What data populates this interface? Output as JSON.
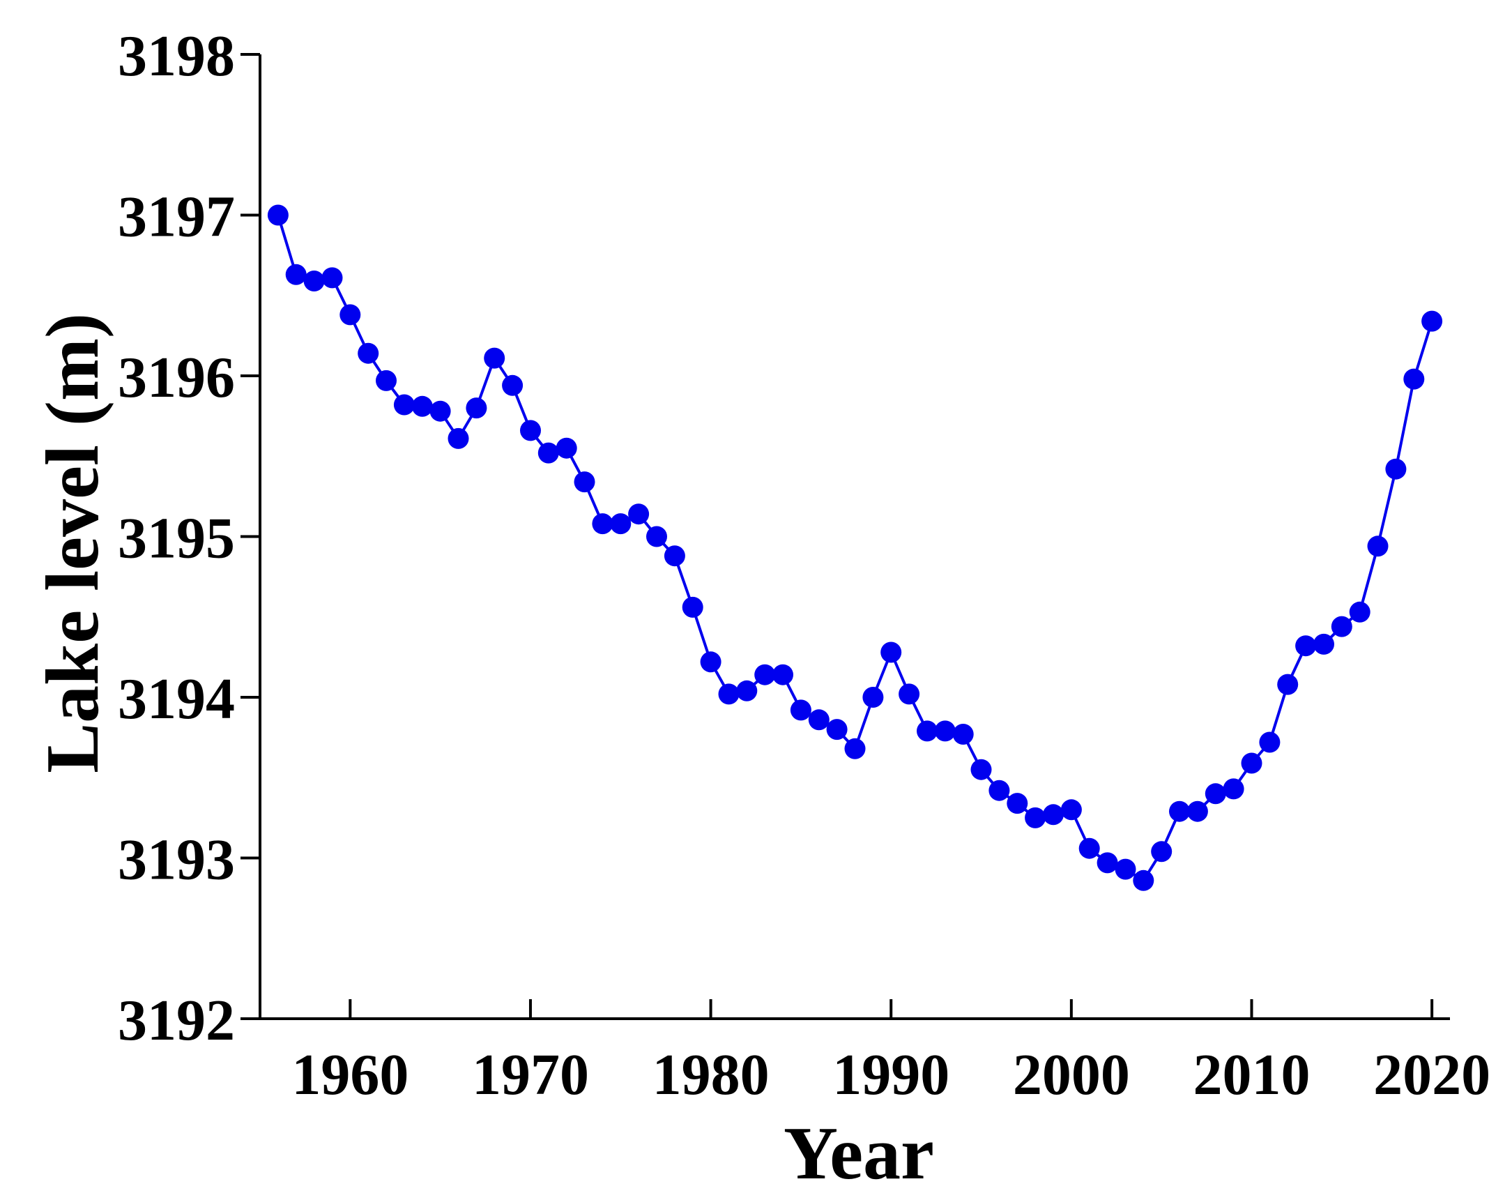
{
  "chart_data": {
    "type": "line",
    "title": "",
    "xlabel": "Year",
    "ylabel": "Lake level (m)",
    "xlim": [
      1955,
      2021
    ],
    "ylim": [
      3192,
      3198
    ],
    "xticks": [
      1960,
      1970,
      1980,
      1990,
      2000,
      2010,
      2020
    ],
    "xtick_labels": [
      "1960",
      "1970",
      "1980",
      "1990",
      "2000",
      "2010",
      "2020"
    ],
    "yticks": [
      3192,
      3193,
      3194,
      3195,
      3196,
      3197,
      3198
    ],
    "ytick_labels": [
      "3192",
      "3193",
      "3194",
      "3195",
      "3196",
      "3197",
      "3198"
    ],
    "grid": false,
    "legend": "none",
    "series": [
      {
        "color": "#0000ee",
        "marker": "circle",
        "x": [
          1956,
          1957,
          1958,
          1959,
          1960,
          1961,
          1962,
          1963,
          1964,
          1965,
          1966,
          1967,
          1968,
          1969,
          1970,
          1971,
          1972,
          1973,
          1974,
          1975,
          1976,
          1977,
          1978,
          1979,
          1980,
          1981,
          1982,
          1983,
          1984,
          1985,
          1986,
          1987,
          1988,
          1989,
          1990,
          1991,
          1992,
          1993,
          1994,
          1995,
          1996,
          1997,
          1998,
          1999,
          2000,
          2001,
          2002,
          2003,
          2004,
          2005,
          2006,
          2007,
          2008,
          2009,
          2010,
          2011,
          2012,
          2013,
          2014,
          2015,
          2016,
          2017,
          2018,
          2019,
          2020
        ],
        "y": [
          3197.0,
          3196.63,
          3196.59,
          3196.61,
          3196.38,
          3196.14,
          3195.97,
          3195.82,
          3195.81,
          3195.78,
          3195.61,
          3195.8,
          3196.11,
          3195.94,
          3195.66,
          3195.52,
          3195.55,
          3195.34,
          3195.08,
          3195.08,
          3195.14,
          3195.0,
          3194.88,
          3194.56,
          3194.22,
          3194.02,
          3194.04,
          3194.14,
          3194.14,
          3193.92,
          3193.86,
          3193.8,
          3193.68,
          3194.0,
          3194.28,
          3194.02,
          3193.79,
          3193.79,
          3193.77,
          3193.55,
          3193.42,
          3193.34,
          3193.25,
          3193.27,
          3193.3,
          3193.06,
          3192.97,
          3192.93,
          3192.86,
          3193.04,
          3193.29,
          3193.29,
          3193.4,
          3193.43,
          3193.59,
          3193.72,
          3194.08,
          3194.32,
          3194.33,
          3194.44,
          3194.53,
          3194.94,
          3195.42,
          3195.98,
          3196.34
        ]
      }
    ]
  }
}
